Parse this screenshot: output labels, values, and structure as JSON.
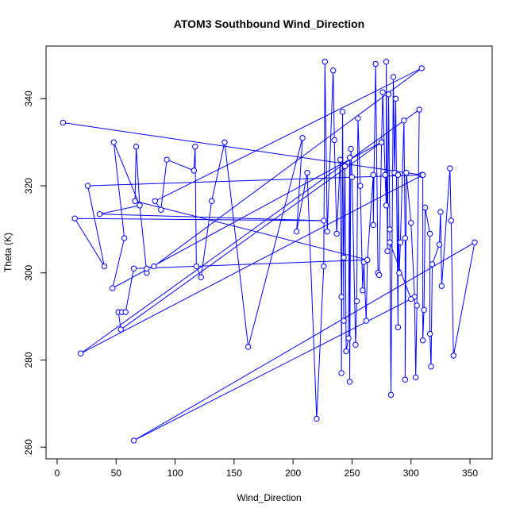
{
  "chart_data": {
    "type": "line",
    "title": "ATOM3 Southbound Wind_Direction",
    "x_label": "Wind_Direction",
    "y_label": "Theta (K)",
    "xlim": [
      -9.4,
      368.8
    ],
    "ylim": [
      257.3,
      352.1
    ],
    "xticks": [
      0,
      50,
      100,
      150,
      200,
      250,
      300,
      350
    ],
    "yticks": [
      260,
      280,
      300,
      320,
      340
    ],
    "grid": false,
    "series": [
      {
        "color": "#0000ff",
        "x": [
          5,
          309,
          26,
          40,
          15,
          226,
          36,
          70,
          48,
          57,
          47,
          275,
          54,
          52,
          55,
          58,
          65,
          263,
          66,
          67,
          70,
          76,
          76,
          82,
          309,
          83,
          88,
          93,
          116,
          117,
          118,
          122,
          131,
          142,
          162,
          208,
          203,
          212,
          220,
          226,
          227,
          229,
          234,
          235,
          237,
          240,
          241,
          241,
          242,
          243,
          243,
          244,
          245,
          247,
          248,
          248,
          249,
          250,
          253,
          254,
          255,
          257,
          259,
          260,
          262,
          263,
          268,
          268,
          270,
          272,
          273,
          275,
          276,
          278,
          279,
          279,
          280,
          281,
          282,
          283,
          285,
          286,
          287,
          289,
          289,
          290,
          291,
          294,
          295,
          295,
          296,
          300,
          303,
          304,
          305,
          307,
          20,
          310,
          310,
          311,
          312,
          316,
          316,
          317,
          318,
          324,
          325,
          326,
          333,
          334,
          336,
          354,
          65,
          300,
          282
        ],
        "y": [
          334.5,
          322.5,
          320,
          301.5,
          312.5,
          312,
          313.5,
          315.5,
          330,
          308,
          296.5,
          330,
          287,
          291,
          291,
          291,
          301,
          303,
          316.5,
          329,
          315.5,
          300,
          301,
          301.5,
          347,
          316.5,
          314.5,
          326,
          323.5,
          329,
          301.5,
          299,
          316.5,
          330,
          283,
          331,
          309.5,
          323,
          266.5,
          301.5,
          348.5,
          309.5,
          346.5,
          330.5,
          309,
          326,
          294.5,
          277,
          337,
          289,
          303.5,
          324.5,
          282,
          285,
          326.5,
          275,
          328.5,
          322,
          283.5,
          293.5,
          335.5,
          320,
          296,
          302.5,
          289,
          303,
          322.5,
          311,
          348,
          300,
          299.5,
          330,
          341.5,
          322.5,
          315.5,
          348.5,
          305,
          341,
          310,
          272,
          345,
          323,
          340,
          287.5,
          322.5,
          300,
          307,
          335,
          308,
          275.5,
          323,
          311.5,
          294.5,
          276,
          292.5,
          337.5,
          281.5,
          322.5,
          284.5,
          291.5,
          315,
          309,
          286,
          278.5,
          302,
          306.5,
          314,
          297,
          324,
          312,
          281,
          307,
          261.5,
          294,
          307
        ]
      }
    ]
  }
}
